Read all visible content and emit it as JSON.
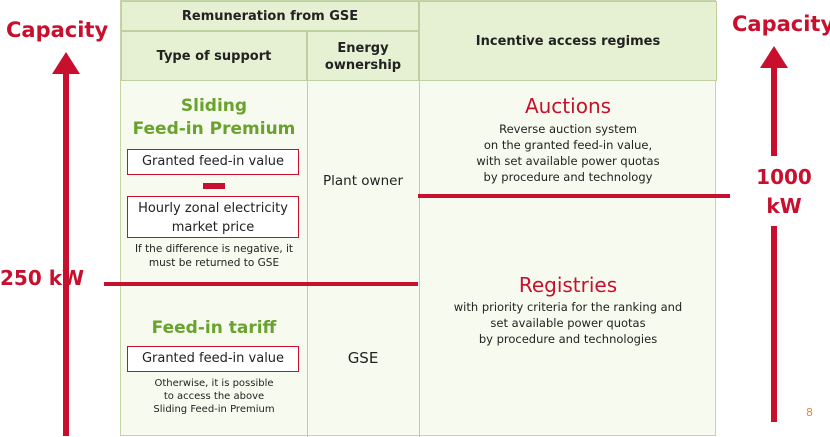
{
  "side": {
    "capacity_left": "Capacity",
    "capacity_right": "Capacity",
    "threshold_250": "250 kW",
    "threshold_1000_line1": "1000",
    "threshold_1000_line2": "kW"
  },
  "header": {
    "remuneration": "Remuneration from GSE",
    "type_of_support": "Type of support",
    "energy_ownership": "Energy ownership",
    "incentive_regimes": "Incentive access regimes"
  },
  "sliding": {
    "title_line1": "Sliding",
    "title_line2": "Feed-in Premium",
    "box1": "Granted  feed-in value",
    "box2": "Hourly zonal electricity market price",
    "note": "If the difference is negative, it must be returned to GSE",
    "ownership": "Plant owner"
  },
  "fit": {
    "title": "Feed-in tariff",
    "box": "Granted  feed-in value",
    "note_line1": "Otherwise, it is possible",
    "note_line2": "to  access  the above",
    "note_line3": "Sliding Feed-in Premium",
    "ownership": "GSE"
  },
  "auctions": {
    "title": "Auctions",
    "line1": "Reverse auction system",
    "line2": "on the granted  feed-in  value,",
    "line3": "with set available power quotas",
    "line4": "by procedure and technology"
  },
  "registries": {
    "title": "Registries",
    "line1": "with priority  criteria for the ranking and",
    "line2": "set available power quotas",
    "line3": "by procedure and technologies"
  },
  "page_number": "8",
  "colors": {
    "accent_red": "#c8102e",
    "accent_green": "#6aa22e",
    "header_bg": "#e6f0d2",
    "cell_bg": "#f7fbef"
  }
}
